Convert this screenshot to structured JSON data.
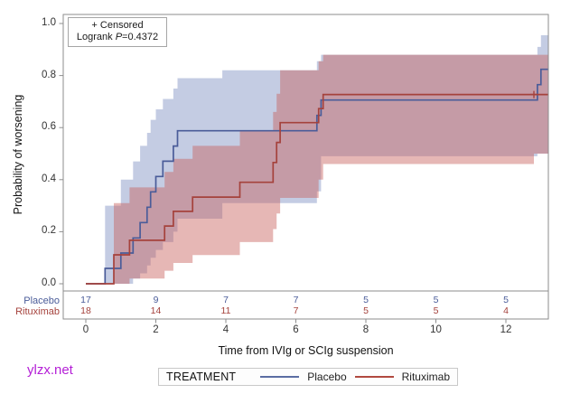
{
  "watermark": {
    "text": "ylzx.net"
  },
  "legend": {
    "title": "TREATMENT"
  },
  "chart_data": {
    "type": "line",
    "subtype": "kaplan-meier-step",
    "title": "",
    "xlabel": "Time from IVIg or SCIg suspension",
    "ylabel": "Probability of worsening",
    "xlim": [
      0,
      13.2
    ],
    "ylim": [
      0.0,
      1.0
    ],
    "grid": false,
    "legend_position": "bottom",
    "annotation": {
      "censored_line": "+ Censored",
      "logrank_prefix": "Logrank ",
      "p_symbol": "P",
      "p_value": "=0.4372"
    },
    "xticks": [
      {
        "v": 0,
        "label": "0"
      },
      {
        "v": 2,
        "label": "2"
      },
      {
        "v": 4,
        "label": "4"
      },
      {
        "v": 6,
        "label": "6"
      },
      {
        "v": 8,
        "label": "8"
      },
      {
        "v": 10,
        "label": "10"
      },
      {
        "v": 12,
        "label": "12"
      }
    ],
    "yticks": [
      {
        "v": 0.0,
        "label": "0.0"
      },
      {
        "v": 0.2,
        "label": "0.2"
      },
      {
        "v": 0.4,
        "label": "0.4"
      },
      {
        "v": 0.6,
        "label": "0.6"
      },
      {
        "v": 0.8,
        "label": "0.8"
      },
      {
        "v": 1.0,
        "label": "1.0"
      }
    ],
    "at_risk_times": [
      0,
      2,
      4,
      6,
      8,
      10,
      12
    ],
    "series": [
      {
        "name": "Placebo",
        "color": "#4a5c99",
        "fill": "rgba(107,128,185,0.40)",
        "steps": [
          [
            0,
            0
          ],
          [
            0.55,
            0.059
          ],
          [
            1.0,
            0.118
          ],
          [
            1.35,
            0.176
          ],
          [
            1.55,
            0.235
          ],
          [
            1.75,
            0.294
          ],
          [
            1.85,
            0.353
          ],
          [
            2.0,
            0.412
          ],
          [
            2.2,
            0.471
          ],
          [
            2.5,
            0.529
          ],
          [
            2.62,
            0.588
          ],
          [
            6.6,
            0.647
          ],
          [
            6.72,
            0.706
          ],
          [
            12.9,
            0.765
          ],
          [
            13.0,
            0.824
          ]
        ],
        "end": 13.2,
        "band_upper": [
          [
            0.55,
            0.3
          ],
          [
            1.0,
            0.4
          ],
          [
            1.35,
            0.47
          ],
          [
            1.55,
            0.53
          ],
          [
            1.75,
            0.58
          ],
          [
            1.85,
            0.63
          ],
          [
            2.0,
            0.67
          ],
          [
            2.2,
            0.71
          ],
          [
            2.5,
            0.75
          ],
          [
            2.62,
            0.79
          ],
          [
            3.9,
            0.82
          ],
          [
            6.6,
            0.855
          ],
          [
            6.72,
            0.88
          ],
          [
            12.9,
            0.91
          ],
          [
            13.0,
            0.955
          ]
        ],
        "band_lower": [
          [
            0.55,
            0.0
          ],
          [
            1.35,
            0.02
          ],
          [
            1.55,
            0.04
          ],
          [
            1.75,
            0.07
          ],
          [
            1.85,
            0.1
          ],
          [
            2.0,
            0.13
          ],
          [
            2.2,
            0.16
          ],
          [
            2.5,
            0.2
          ],
          [
            2.62,
            0.25
          ],
          [
            3.9,
            0.31
          ],
          [
            6.6,
            0.355
          ],
          [
            6.72,
            0.49
          ],
          [
            12.9,
            0.5
          ]
        ],
        "censors": [],
        "at_risk": [
          17,
          9,
          7,
          7,
          5,
          5,
          5
        ]
      },
      {
        "name": "Rituximab",
        "color": "#a5423c",
        "fill": "rgba(199,96,92,0.45)",
        "steps": [
          [
            0,
            0
          ],
          [
            0.8,
            0.111
          ],
          [
            1.25,
            0.167
          ],
          [
            2.25,
            0.222
          ],
          [
            2.5,
            0.278
          ],
          [
            3.05,
            0.333
          ],
          [
            4.4,
            0.39
          ],
          [
            5.35,
            0.466
          ],
          [
            5.45,
            0.543
          ],
          [
            5.55,
            0.619
          ],
          [
            6.65,
            0.673
          ],
          [
            6.78,
            0.727
          ]
        ],
        "end": 13.2,
        "band_upper": [
          [
            0.8,
            0.31
          ],
          [
            1.25,
            0.37
          ],
          [
            2.25,
            0.43
          ],
          [
            2.5,
            0.48
          ],
          [
            3.05,
            0.53
          ],
          [
            4.4,
            0.59
          ],
          [
            5.35,
            0.66
          ],
          [
            5.45,
            0.73
          ],
          [
            5.55,
            0.82
          ],
          [
            6.65,
            0.855
          ],
          [
            6.78,
            0.88
          ]
        ],
        "band_lower": [
          [
            0.8,
            0.0
          ],
          [
            1.25,
            0.02
          ],
          [
            2.25,
            0.05
          ],
          [
            2.5,
            0.08
          ],
          [
            3.05,
            0.11
          ],
          [
            4.4,
            0.16
          ],
          [
            5.35,
            0.21
          ],
          [
            5.45,
            0.27
          ],
          [
            5.55,
            0.33
          ],
          [
            6.65,
            0.4
          ],
          [
            6.78,
            0.46
          ],
          [
            12.8,
            0.5
          ]
        ],
        "censors": [
          12.8
        ],
        "at_risk": [
          18,
          14,
          11,
          7,
          5,
          5,
          4
        ]
      }
    ]
  }
}
